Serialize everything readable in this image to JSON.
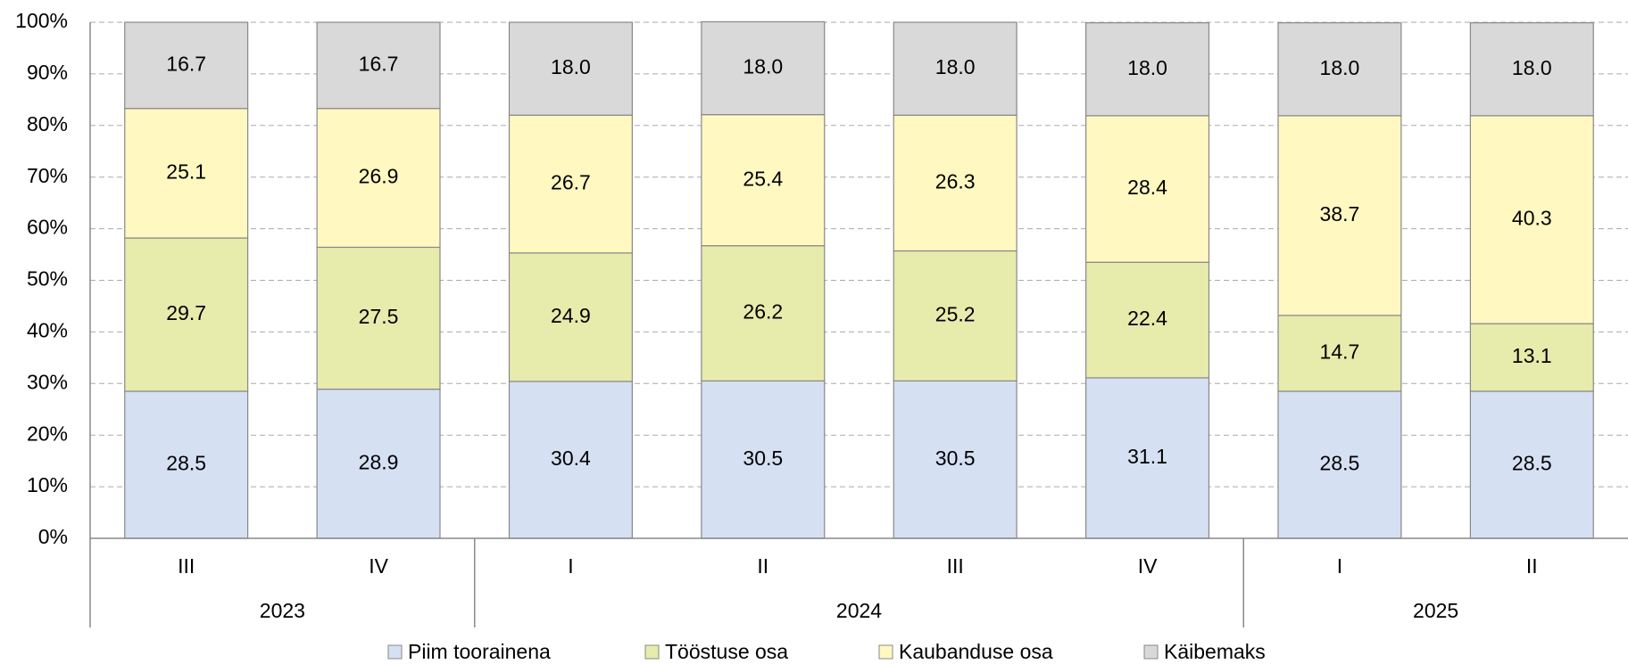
{
  "chart_data": {
    "type": "stacked_bar",
    "groups": [
      {
        "label": "2023",
        "categories": [
          "III",
          "IV"
        ]
      },
      {
        "label": "2024",
        "categories": [
          "I",
          "II",
          "III",
          "IV"
        ]
      },
      {
        "label": "2025",
        "categories": [
          "I",
          "II"
        ]
      }
    ],
    "series": [
      {
        "name": "Piim toorainena",
        "color": "#d6e0f3",
        "values": [
          28.5,
          28.9,
          30.4,
          30.5,
          30.5,
          31.1,
          28.5,
          28.5
        ],
        "value_labels": [
          "28.5",
          "28.9",
          "30.4",
          "30.5",
          "30.5",
          "31.1",
          "28.5",
          "28.5"
        ]
      },
      {
        "name": "Tööstuse osa",
        "color": "#e7ebac",
        "values": [
          29.7,
          27.5,
          24.9,
          26.2,
          25.2,
          22.4,
          14.7,
          13.1
        ],
        "value_labels": [
          "29.7",
          "27.5",
          "24.9",
          "26.2",
          "25.2",
          "22.4",
          "14.7",
          "13.1"
        ]
      },
      {
        "name": "Kaubanduse osa",
        "color": "#fff8c1",
        "values": [
          25.1,
          26.9,
          26.7,
          25.4,
          26.3,
          28.4,
          38.7,
          40.3
        ],
        "value_labels": [
          "25.1",
          "26.9",
          "26.7",
          "25.4",
          "26.3",
          "28.4",
          "38.7",
          "40.3"
        ]
      },
      {
        "name": "Käibemaks",
        "color": "#d9d9d9",
        "values": [
          16.7,
          16.7,
          18.0,
          18.0,
          18.0,
          18.0,
          18.0,
          18.0
        ],
        "value_labels": [
          "16.7",
          "16.7",
          "18.0",
          "18.0",
          "18.0",
          "18.0",
          "18.0",
          "18.0"
        ]
      }
    ],
    "ylim": [
      0,
      100
    ],
    "yticks": [
      {
        "value": 0,
        "label": "0%"
      },
      {
        "value": 10,
        "label": "10%"
      },
      {
        "value": 20,
        "label": "20%"
      },
      {
        "value": 30,
        "label": "30%"
      },
      {
        "value": 40,
        "label": "40%"
      },
      {
        "value": 50,
        "label": "50%"
      },
      {
        "value": 60,
        "label": "60%"
      },
      {
        "value": 70,
        "label": "70%"
      },
      {
        "value": 80,
        "label": "80%"
      },
      {
        "value": 90,
        "label": "90%"
      },
      {
        "value": 100,
        "label": "100%"
      }
    ],
    "grid": true,
    "legend": "bottom"
  }
}
